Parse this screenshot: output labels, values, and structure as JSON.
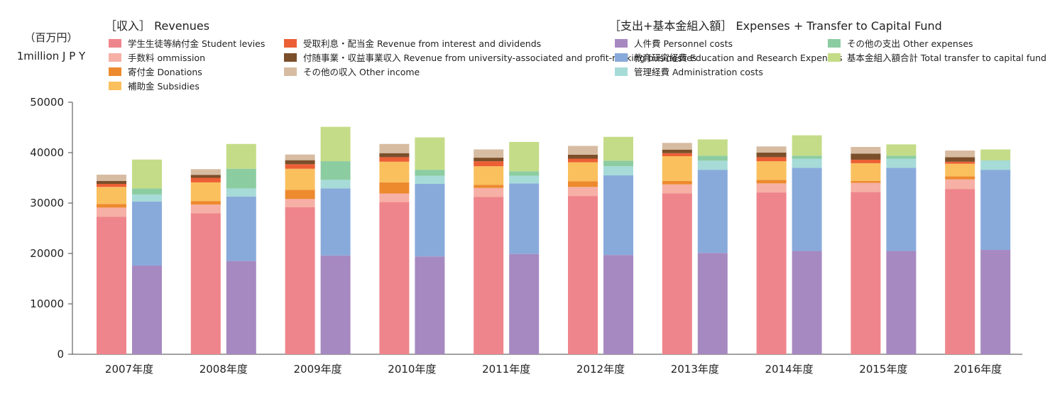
{
  "chart_data": {
    "type": "bar",
    "stacked": true,
    "grouped": true,
    "categories": [
      "2007年度",
      "2008年度",
      "2009年度",
      "2010年度",
      "2011年度",
      "2012年度",
      "2013年度",
      "2014年度",
      "2015年度",
      "2016年度"
    ],
    "y_unit_label": [
      "（百万円）",
      "1million J P Y"
    ],
    "ylim": [
      0,
      50000
    ],
    "yticks": [
      0,
      10000,
      20000,
      30000,
      40000,
      50000
    ],
    "grid": false,
    "groups": [
      {
        "title": "［収入］ Revenues",
        "series": [
          {
            "name": "学生生徒等納付金 Student levies",
            "color": "#ef858c",
            "values": [
              27300,
              28000,
              29200,
              30200,
              31200,
              31400,
              31900,
              32100,
              32200,
              32800
            ]
          },
          {
            "name": "手数料 ommission",
            "color": "#f6b0a5",
            "values": [
              1800,
              1700,
              1600,
              1700,
              1800,
              1800,
              1800,
              1800,
              1800,
              1900
            ]
          },
          {
            "name": "寄付金 Donations",
            "color": "#ed8a2e",
            "values": [
              700,
              700,
              1800,
              2200,
              600,
              1100,
              700,
              700,
              400,
              600
            ]
          },
          {
            "name": "補助金 Subsidies",
            "color": "#fac05e",
            "values": [
              3400,
              3700,
              4200,
              4100,
              3700,
              3800,
              4900,
              3700,
              3500,
              2500
            ]
          },
          {
            "name": "受取利息・配当金 Revenue from interest and dividends",
            "color": "#ec5f35",
            "values": [
              600,
              900,
              900,
              900,
              1000,
              700,
              600,
              800,
              700,
              400
            ]
          },
          {
            "name": "付随事業・収益事業収入 Revenue from university-associated and profit-making businesses",
            "color": "#7b4f2a",
            "values": [
              600,
              600,
              800,
              800,
              700,
              800,
              700,
              900,
              1200,
              900
            ]
          },
          {
            "name": "その他の収入 Other income",
            "color": "#d7bca2",
            "values": [
              1300,
              1200,
              1200,
              1900,
              1700,
              1800,
              1400,
              1300,
              1400,
              1400
            ]
          }
        ]
      },
      {
        "title": "［支出+基本金組入額］ Expenses + Transfer to Capital Fund",
        "series": [
          {
            "name": "人件費 Personnel costs",
            "color": "#a689c1",
            "values": [
              17600,
              18500,
              19600,
              19400,
              19900,
              19700,
              20100,
              20500,
              20500,
              20700
            ]
          },
          {
            "name": "教育研究経費 Education and Research Expenses",
            "color": "#88aadb",
            "values": [
              12700,
              12800,
              13300,
              14400,
              14000,
              15800,
              16500,
              16500,
              16500,
              15900
            ]
          },
          {
            "name": "管理経費 Administration costs",
            "color": "#a6dbd8",
            "values": [
              1400,
              1600,
              1700,
              1600,
              1500,
              1800,
              1800,
              1800,
              1800,
              1800
            ]
          },
          {
            "name": "その他の支出 Other expenses",
            "color": "#8ccca1",
            "values": [
              1200,
              3900,
              3700,
              1200,
              900,
              1100,
              1000,
              600,
              600,
              100
            ]
          },
          {
            "name": "基本金組入額合計 Total transfer to capital fund",
            "color": "#c4dc87",
            "values": [
              5800,
              5000,
              6900,
              6500,
              5900,
              4800,
              3300,
              4100,
              2300,
              2200
            ]
          }
        ]
      }
    ]
  }
}
